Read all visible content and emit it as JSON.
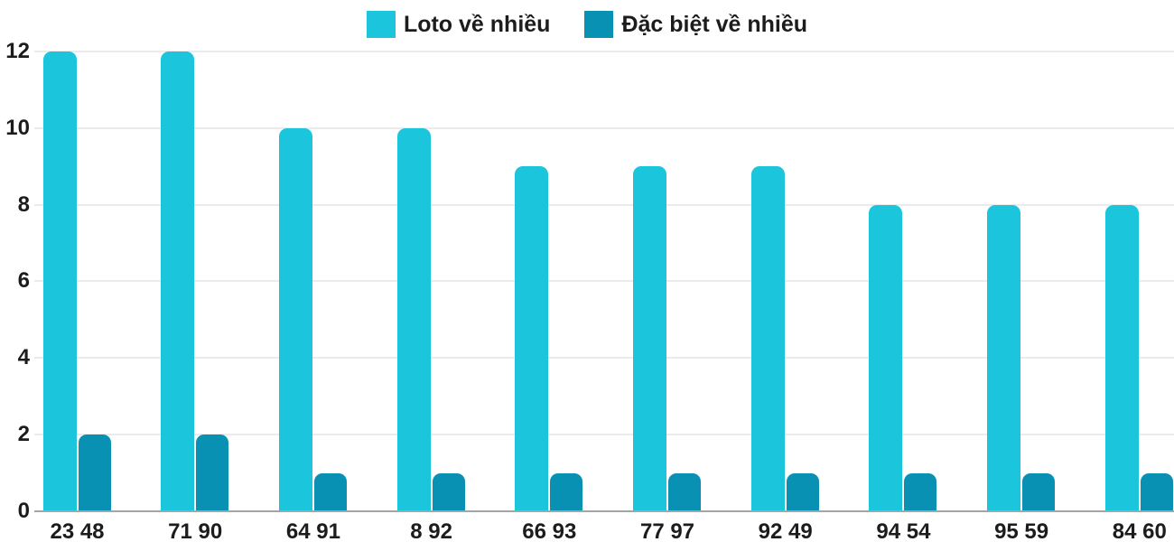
{
  "chart_data": {
    "type": "bar",
    "title": "",
    "xlabel": "",
    "ylabel": "",
    "categories": [
      "23 48",
      "71 90",
      "64 91",
      "8 92",
      "66 93",
      "77 97",
      "92 49",
      "94 54",
      "95 59",
      "84 60"
    ],
    "series": [
      {
        "name": "Loto về nhiều",
        "color": "#1bc5db",
        "values": [
          12,
          12,
          10,
          10,
          9,
          9,
          9,
          8,
          8,
          8
        ]
      },
      {
        "name": "Đặc biệt về nhiều",
        "color": "#0891b2",
        "values": [
          2,
          2,
          1,
          1,
          1,
          1,
          1,
          1,
          1,
          1
        ]
      }
    ],
    "ylim": [
      0,
      12
    ],
    "yticks": [
      0,
      2,
      4,
      6,
      8,
      10,
      12
    ],
    "grid": true,
    "legend_position": "top"
  },
  "colors": {
    "background": "#ffffff",
    "gridline": "#ebebeb",
    "axis_line": "#a5a5a5",
    "text": "#1c1c1c"
  }
}
